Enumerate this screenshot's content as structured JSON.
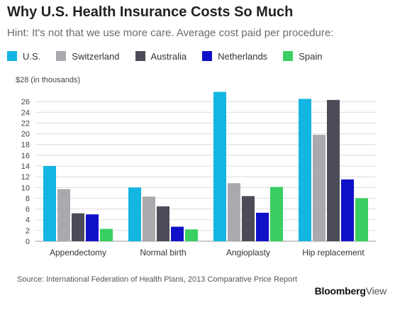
{
  "title": "Why U.S. Health Insurance Costs So Much",
  "subtitle": "Hint: It's not that we use more care. Average cost paid per procedure:",
  "source": "Source: International Federation of Health Plans, 2013 Comparative Price Report",
  "brand": {
    "name": "Bloomberg",
    "suffix": "View"
  },
  "chart_data": {
    "type": "bar",
    "categories": [
      "Appendectomy",
      "Normal birth",
      "Angioplasty",
      "Hip replacement"
    ],
    "series": [
      {
        "name": "U.S.",
        "color": "#13b5e2",
        "values": [
          14.0,
          10.0,
          27.8,
          26.5
        ]
      },
      {
        "name": "Switzerland",
        "color": "#a9a9ae",
        "values": [
          9.7,
          8.3,
          10.8,
          19.8
        ]
      },
      {
        "name": "Australia",
        "color": "#4c4c58",
        "values": [
          5.2,
          6.5,
          8.4,
          26.3
        ]
      },
      {
        "name": "Netherlands",
        "color": "#1010c8",
        "values": [
          5.0,
          2.7,
          5.3,
          11.5
        ]
      },
      {
        "name": "Spain",
        "color": "#39cf61",
        "values": [
          2.3,
          2.2,
          10.1,
          8.0
        ]
      }
    ],
    "ylabel": "$28 (in thousands)",
    "yticks": [
      "0",
      "2",
      "4",
      "6",
      "8",
      "10",
      "12",
      "14",
      "16",
      "18",
      "20",
      "22",
      "24",
      "26"
    ],
    "ylim": [
      0,
      28
    ],
    "grid": true,
    "legend": "top-left"
  }
}
